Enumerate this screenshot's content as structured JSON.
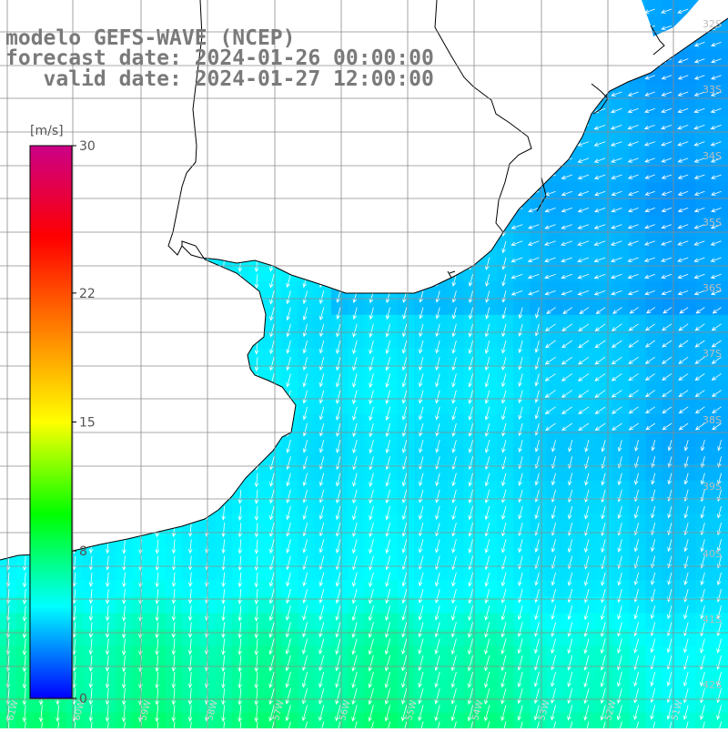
{
  "title": {
    "line1": "modelo GEFS-WAVE (NCEP)",
    "line2": "forecast date: 2024-01-26 00:00:00",
    "line3": "   valid date: 2024-01-27 12:00:00"
  },
  "colorbar": {
    "unit": "[m/s]",
    "ticks": [
      {
        "value": 30,
        "label": "30"
      },
      {
        "value": 22,
        "label": "22"
      },
      {
        "value": 15,
        "label": "15"
      },
      {
        "value": 8,
        "label": "8"
      },
      {
        "value": 0,
        "label": "0"
      }
    ],
    "colors": [
      "#0000ff",
      "#00ffff",
      "#00ff00",
      "#ffff00",
      "#ff8000",
      "#ff0000",
      "#cc0088"
    ]
  },
  "latitude_labels": [
    "32S",
    "33S",
    "34S",
    "35S",
    "36S",
    "37S",
    "38S",
    "39S",
    "40S",
    "41S",
    "42S"
  ],
  "longitude_labels": [
    "61W",
    "60W",
    "59W",
    "58W",
    "57W",
    "56W",
    "55W",
    "54W",
    "53W",
    "52W",
    "51W"
  ],
  "field": {
    "variable": "wind speed (m/s)",
    "wind_direction": "mostly from north / north-east (arrows pointing south-west to south)",
    "speed_min": 4,
    "speed_max": 11
  },
  "colors": {
    "land": "#ffffff",
    "coast": "#000000",
    "grid": "#999999",
    "title": "#7a7a7a",
    "arrow": "#ffffff"
  }
}
